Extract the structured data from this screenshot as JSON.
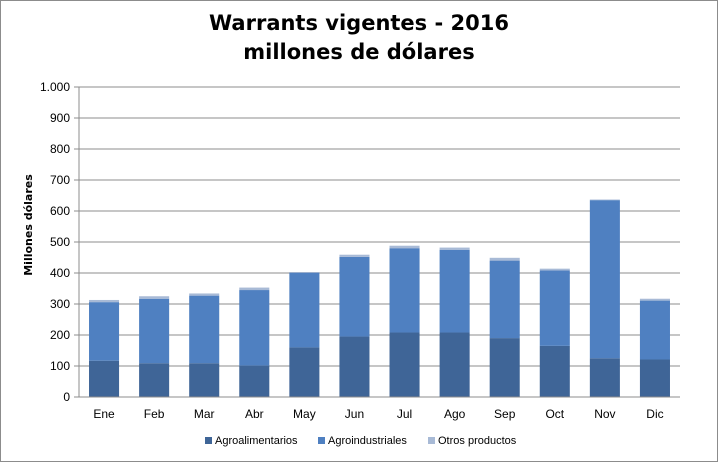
{
  "chart_data": {
    "type": "bar",
    "stacked": true,
    "title_line1": "Warrants vigentes - 2016",
    "title_line2": "millones de dólares",
    "xlabel": "",
    "ylabel": "Millones dólares",
    "ylim": [
      0,
      1000
    ],
    "yticks": [
      0,
      100,
      200,
      300,
      400,
      500,
      600,
      700,
      800,
      900,
      1000
    ],
    "ytick_labels": [
      "0",
      "100",
      "200",
      "300",
      "400",
      "500",
      "600",
      "700",
      "800",
      "900",
      "1.000"
    ],
    "grid": true,
    "legend_position": "bottom",
    "categories": [
      "Ene",
      "Feb",
      "Mar",
      "Abr",
      "May",
      "Jun",
      "Jul",
      "Ago",
      "Sep",
      "Oct",
      "Nov",
      "Dic"
    ],
    "series": [
      {
        "name": "Agroalimentarios",
        "color": "#3f6597",
        "values": [
          117,
          109,
          109,
          101,
          160,
          195,
          208,
          208,
          190,
          165,
          125,
          121
        ]
      },
      {
        "name": "Agroindustriales",
        "color": "#4f80c1",
        "values": [
          189,
          208,
          218,
          244,
          241,
          257,
          272,
          267,
          250,
          243,
          510,
          190
        ]
      },
      {
        "name": "Otros productos",
        "color": "#a8bad6",
        "values": [
          7,
          8,
          7,
          8,
          2,
          7,
          8,
          7,
          9,
          6,
          2,
          6
        ]
      }
    ]
  }
}
